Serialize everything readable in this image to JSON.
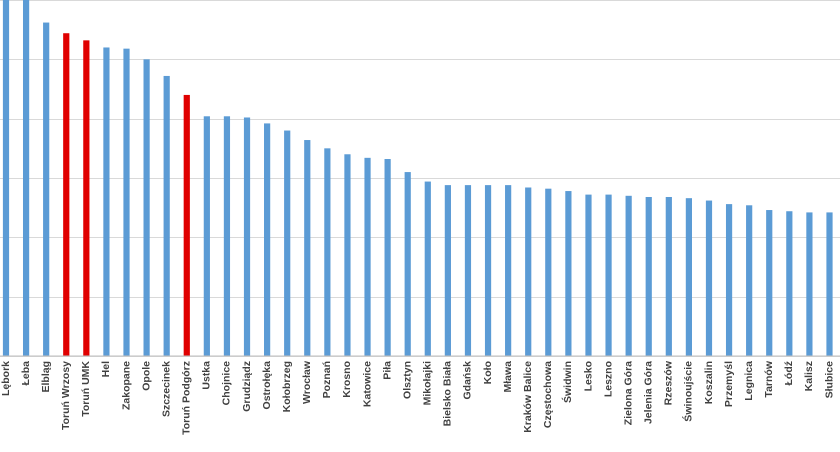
{
  "chart_data": {
    "type": "bar",
    "categories": [
      "Lębork",
      "Łeba",
      "Elbląg",
      "Toruń Wrzosy",
      "Toruń UMK",
      "Hel",
      "Zakopane",
      "Opole",
      "Szczecinek",
      "Toruń Podgórz",
      "Ustka",
      "Chojnice",
      "Grudziądz",
      "Ostrołęka",
      "Kołobrzeg",
      "Wrocław",
      "Poznań",
      "Krosno",
      "Katowice",
      "Piła",
      "Olsztyn",
      "Mikołajki",
      "Bielsko Biała",
      "Gdańsk",
      "Koło",
      "Mława",
      "Kraków Balice",
      "Częstochowa",
      "Świdwin",
      "Lesko",
      "Leszno",
      "Zielona Góra",
      "Jelenia Góra",
      "Rzeszów",
      "Świnoujście",
      "Koszalin",
      "Przemyśl",
      "Legnica",
      "Tarnów",
      "Łódź",
      "Kalisz",
      "Słubice"
    ],
    "values": [
      5.4,
      5.4,
      5.21,
      5.12,
      5.06,
      5.0,
      4.99,
      4.9,
      4.76,
      4.6,
      4.42,
      4.42,
      4.41,
      4.36,
      4.3,
      4.22,
      4.15,
      4.1,
      4.07,
      4.06,
      3.95,
      3.87,
      3.84,
      3.84,
      3.84,
      3.84,
      3.82,
      3.81,
      3.79,
      3.76,
      3.76,
      3.75,
      3.74,
      3.74,
      3.73,
      3.71,
      3.68,
      3.67,
      3.63,
      3.62,
      3.61,
      3.61
    ],
    "highlighted": [
      "Toruń Wrzosy",
      "Toruń UMK",
      "Toruń Podgórz"
    ],
    "colors": {
      "bar": "#5b9bd5",
      "highlight": "#e00000",
      "grid": "#d9d9d9"
    },
    "ylim": [
      2.4,
      5.4
    ],
    "gridlines": [
      2.4,
      2.9,
      3.4,
      3.9,
      4.4,
      4.9,
      5.4
    ],
    "grid": true,
    "title": "",
    "xlabel": "",
    "ylabel": ""
  }
}
